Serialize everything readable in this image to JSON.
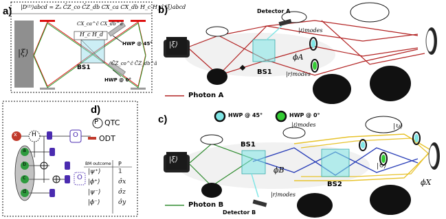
{
  "panels": {
    "a": {
      "label": "a)",
      "formula": "|D⁽²⁾⟩abcd = Zₐ C̄Z_co C̄Z_db CX_ca CX_db H_c H_d |ξ⟩abcd",
      "state": "|ξ⟩",
      "cx_box": "CX_ca^ĉ CX_db^â",
      "h_box": "H_c H_d",
      "bs": "BS1",
      "hwp45": "HWP @ 45°",
      "hwp0": "HWP @ 0°",
      "cz": "C̄Z_co^ĉ C̄Z_db^â"
    },
    "b": {
      "label": "b)",
      "detector": "Detector A",
      "l_modes": "|ℓ⟩modes",
      "r_modes": "|r⟩modes",
      "phi": "ϕA",
      "bs": "BS1",
      "state": "|ξ⟩",
      "legend": "Photon A"
    },
    "c": {
      "label": "c)",
      "state": "|ξ⟩",
      "hwp45": "HWP @ 45°",
      "hwp0": "HWP @ 0°",
      "l_modes": "|ℓ⟩modes",
      "r_modes": "|r⟩modes",
      "bs1": "BS1",
      "bs2": "BS2",
      "phi_b": "ϕB",
      "phi_x": "ϕX",
      "circ1": "|↻⟩",
      "circ2": "|↻⟩",
      "circ3": "|↻⟩",
      "detector": "Detector B",
      "legend": "Photon B"
    },
    "d": {
      "label": "d)",
      "qtc": "QTC",
      "odt": "ODT",
      "p": "P",
      "qubits": [
        "x",
        "H",
        "a",
        "b",
        "c",
        "d"
      ],
      "o_labels": [
        "O",
        "O",
        "O",
        "O"
      ],
      "table_header": [
        "BM outcome",
        "P"
      ],
      "table_rows": [
        [
          "|ψ⁺⟩",
          "𝟙"
        ],
        [
          "|ϕ⁺⟩",
          "σ̂x"
        ],
        [
          "|ψ⁻⟩",
          "σ̂z"
        ],
        [
          "|ϕ⁻⟩",
          "σ̂y"
        ]
      ]
    }
  },
  "colors": {
    "red": "#c8102e",
    "green": "#2e8b2e",
    "blue": "#2a3fb8",
    "yellow": "#e7c22a",
    "cyan": "#7fe6e6",
    "gray": "#8a8a8a",
    "purple": "#4a2bb0",
    "qred": "#c0392b",
    "qgreen": "#2e9b3e"
  }
}
